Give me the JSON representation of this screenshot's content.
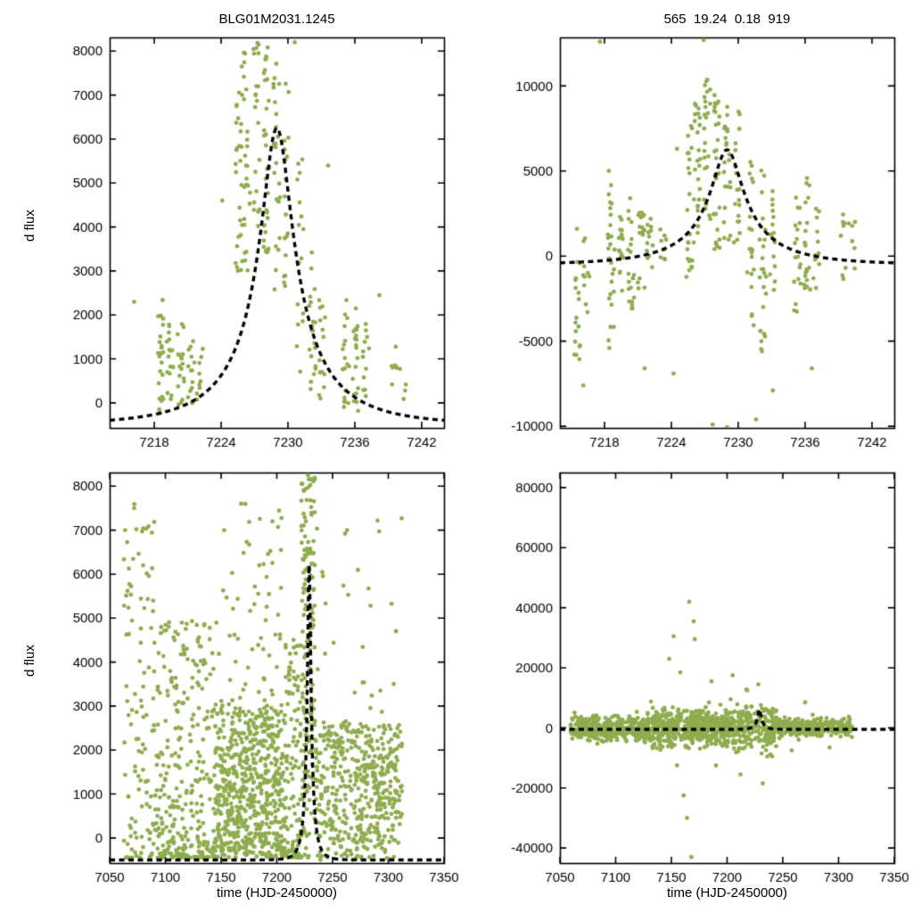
{
  "figure": {
    "left_title": "BLG01M2031.1245",
    "right_title": "565  19.24  0.18  919",
    "ylabel": "d flux",
    "xlabel": "time (HJD-2450000)"
  },
  "colors": {
    "point": "#8fac4f",
    "curve": "#000000",
    "axis": "#000000",
    "background": "#ffffff"
  },
  "chart_data": [
    {
      "name": "top-left",
      "type": "scatter",
      "xlim": [
        7214,
        7244
      ],
      "ylim": [
        -570,
        8310
      ],
      "xticks": [
        7218,
        7224,
        7230,
        7236,
        7242
      ],
      "yticks": [
        0,
        1000,
        2000,
        3000,
        4000,
        5000,
        6000,
        7000,
        8000
      ],
      "curve": {
        "model": "paczynski",
        "t0": 7229,
        "tE": 8,
        "u0": 0.18,
        "fs": 1460,
        "fb": -500
      },
      "seed": 11,
      "bands": [
        [
          7218.6,
          26,
          -300,
          2400
        ],
        [
          7219.4,
          16,
          0,
          1900
        ],
        [
          7220.4,
          18,
          -200,
          1800
        ],
        [
          7221.3,
          14,
          0,
          1500
        ],
        [
          7222.1,
          9,
          0,
          1250
        ],
        [
          7225.6,
          28,
          2500,
          7700
        ],
        [
          7226.3,
          24,
          2900,
          8300
        ],
        [
          7227.2,
          22,
          3800,
          8300
        ],
        [
          7228.1,
          30,
          3400,
          8300
        ],
        [
          7229.0,
          24,
          2400,
          7900
        ],
        [
          7229.9,
          18,
          2600,
          7400
        ],
        [
          7231.1,
          16,
          500,
          5800
        ],
        [
          7232.2,
          20,
          300,
          3600
        ],
        [
          7233.1,
          14,
          0,
          2500
        ],
        [
          7235.2,
          18,
          -300,
          2400
        ],
        [
          7236.1,
          20,
          -200,
          2300
        ],
        [
          7237.0,
          12,
          0,
          1800
        ],
        [
          7239.5,
          6,
          200,
          1300
        ],
        [
          7240.3,
          4,
          0,
          800
        ]
      ],
      "regions": [],
      "normals": [],
      "outliers": [
        [
          7216.2,
          2300
        ],
        [
          7224.1,
          4600
        ],
        [
          7233.6,
          5400
        ],
        [
          7238.2,
          2450
        ],
        [
          7230.6,
          8200
        ]
      ]
    },
    {
      "name": "top-right",
      "type": "scatter",
      "xlim": [
        7214,
        7244
      ],
      "ylim": [
        -10100,
        12850
      ],
      "xticks": [
        7218,
        7224,
        7230,
        7236,
        7242
      ],
      "yticks": [
        -10000,
        -5000,
        0,
        5000,
        10000
      ],
      "curve": {
        "model": "paczynski",
        "t0": 7229,
        "tE": 8,
        "u0": 0.18,
        "fs": 1460,
        "fb": -500
      },
      "seed": 22,
      "bands": [
        [
          7215.6,
          18,
          -6200,
          2500
        ],
        [
          7216.4,
          10,
          -3500,
          2000
        ],
        [
          7218.6,
          28,
          -5500,
          5500
        ],
        [
          7219.4,
          16,
          -2500,
          3200
        ],
        [
          7220.4,
          20,
          -3200,
          3500
        ],
        [
          7221.3,
          16,
          -2200,
          3000
        ],
        [
          7222.1,
          12,
          -1500,
          2600
        ],
        [
          7223.3,
          8,
          -1200,
          2100
        ],
        [
          7225.6,
          24,
          -1500,
          8200
        ],
        [
          7226.3,
          24,
          500,
          9700
        ],
        [
          7227.2,
          24,
          1000,
          10400
        ],
        [
          7228.1,
          28,
          0,
          10000
        ],
        [
          7229.0,
          24,
          -500,
          9200
        ],
        [
          7229.9,
          18,
          500,
          8600
        ],
        [
          7231.1,
          20,
          -4200,
          6200
        ],
        [
          7232.2,
          24,
          -6500,
          5200
        ],
        [
          7233.1,
          16,
          -4200,
          4200
        ],
        [
          7235.3,
          18,
          -3600,
          3600
        ],
        [
          7236.2,
          20,
          -2600,
          4600
        ],
        [
          7237.0,
          12,
          -2100,
          3100
        ],
        [
          7239.4,
          8,
          -1600,
          2600
        ],
        [
          7240.2,
          6,
          -1100,
          2100
        ]
      ],
      "regions": [],
      "normals": [],
      "outliers": [
        [
          7217.6,
          12600
        ],
        [
          7216.1,
          -7600
        ],
        [
          7224.2,
          -6900
        ],
        [
          7227.7,
          -9900
        ],
        [
          7229.0,
          -10050
        ],
        [
          7231.6,
          -9600
        ],
        [
          7233.1,
          -7900
        ],
        [
          7236.6,
          -6600
        ],
        [
          7226.9,
          12700
        ],
        [
          7224.5,
          6300
        ],
        [
          7221.6,
          -6600
        ]
      ]
    },
    {
      "name": "bottom-left",
      "type": "scatter",
      "xlim": [
        7050,
        7350
      ],
      "ylim": [
        -570,
        8310
      ],
      "xticks": [
        7050,
        7100,
        7150,
        7200,
        7250,
        7300,
        7350
      ],
      "yticks": [
        0,
        1000,
        2000,
        3000,
        4000,
        5000,
        6000,
        7000,
        8000
      ],
      "curve": {
        "model": "paczynski",
        "t0": 7229,
        "tE": 8,
        "u0": 0.18,
        "fs": 1460,
        "fb": -500
      },
      "seed": 33,
      "bands": [],
      "regions": [
        [
          7063,
          7090,
          110,
          -450,
          7600,
          1.7
        ],
        [
          7091,
          7144,
          300,
          -450,
          5000,
          1.9
        ],
        [
          7145,
          7204,
          600,
          -450,
          2900,
          1.1
        ],
        [
          7145,
          7204,
          70,
          2900,
          7800,
          1.6
        ],
        [
          7205,
          7221,
          130,
          -450,
          4600,
          1.6
        ],
        [
          7222,
          7234,
          170,
          -450,
          8300,
          0.85
        ],
        [
          7235,
          7312,
          480,
          -500,
          2600,
          1.0
        ],
        [
          7235,
          7312,
          30,
          2600,
          7300,
          1.5
        ]
      ],
      "normals": [],
      "outliers": [
        [
          7228.0,
          8250
        ],
        [
          7263,
          7000
        ],
        [
          7072,
          7500
        ],
        [
          7080,
          6200
        ],
        [
          7310,
          2100
        ],
        [
          7196,
          7200
        ],
        [
          7168,
          7600
        ]
      ]
    },
    {
      "name": "bottom-right",
      "type": "scatter",
      "xlim": [
        7050,
        7350
      ],
      "ylim": [
        -45000,
        85000
      ],
      "xticks": [
        7050,
        7100,
        7150,
        7200,
        7250,
        7300,
        7350
      ],
      "yticks": [
        -40000,
        -20000,
        0,
        20000,
        40000,
        60000,
        80000
      ],
      "curve": {
        "model": "paczynski",
        "t0": 7229,
        "tE": 8,
        "u0": 0.18,
        "fs": 1460,
        "fb": -500
      },
      "seed": 44,
      "bands": [],
      "regions": [],
      "normals": [
        [
          7060,
          7128,
          380,
          -200,
          1900
        ],
        [
          7129,
          7198,
          520,
          0,
          3000
        ],
        [
          7199,
          7244,
          240,
          300,
          3800
        ],
        [
          7245,
          7312,
          330,
          300,
          1500
        ]
      ],
      "outliers": [
        [
          7148,
          23000
        ],
        [
          7152,
          30500
        ],
        [
          7158,
          18500
        ],
        [
          7161,
          -22500
        ],
        [
          7166,
          42000
        ],
        [
          7170,
          35500
        ],
        [
          7171,
          29500
        ],
        [
          7155,
          -12500
        ],
        [
          7186,
          15500
        ],
        [
          7190,
          -12500
        ],
        [
          7205,
          17500
        ],
        [
          7212,
          -15500
        ],
        [
          7218,
          12500
        ],
        [
          7228,
          14500
        ],
        [
          7232,
          -18500
        ],
        [
          7236,
          -9500
        ],
        [
          7258,
          -7500
        ],
        [
          7270,
          8500
        ],
        [
          7292,
          -6500
        ],
        [
          7168,
          -43000
        ],
        [
          7164,
          -30000
        ]
      ]
    }
  ]
}
